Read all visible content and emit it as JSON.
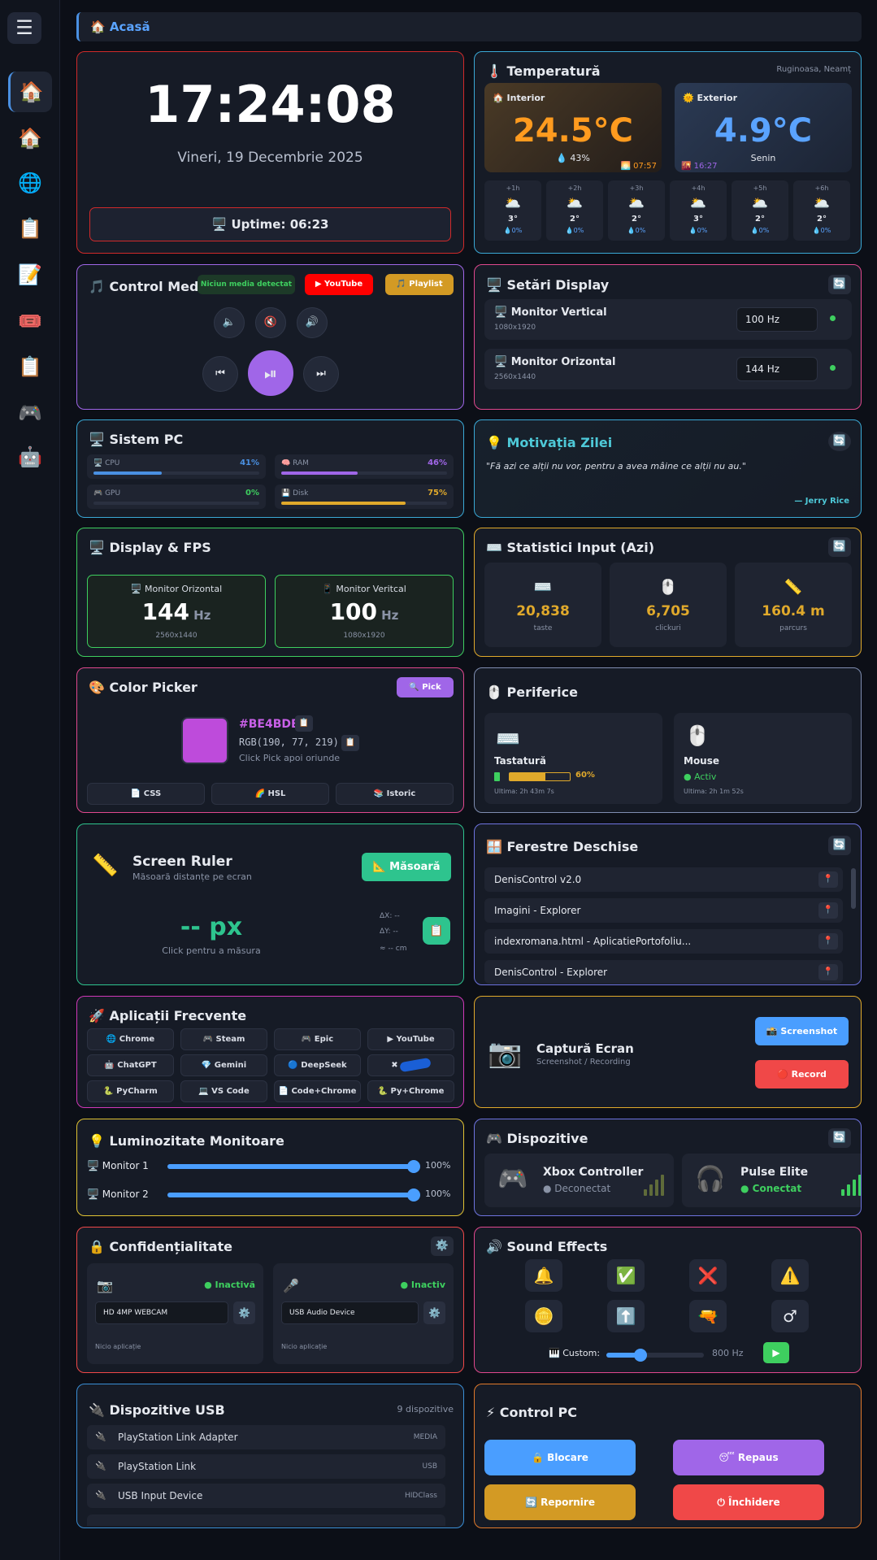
{
  "sidebar": {
    "menu_icon": "☰",
    "items": [
      {
        "icon": "🏠",
        "name": "home"
      },
      {
        "icon": "🏠",
        "name": "house"
      },
      {
        "icon": "🌐",
        "name": "web"
      },
      {
        "icon": "📋",
        "name": "clipboard"
      },
      {
        "icon": "📝",
        "name": "notes"
      },
      {
        "icon": "🎟️",
        "name": "tickets"
      },
      {
        "icon": "📋",
        "name": "list"
      },
      {
        "icon": "🎮",
        "name": "games"
      },
      {
        "icon": "🤖",
        "name": "robot"
      }
    ]
  },
  "header": {
    "title": "🏠 Acasă"
  },
  "clock": {
    "time": "17:24:08",
    "date": "Vineri, 19 Decembrie 2025",
    "uptime": "🖥️ Uptime: 06:23"
  },
  "temperature": {
    "title": "🌡️ Temperatură",
    "location": "Ruginoasa, Neamț",
    "interior": {
      "label": "🏠 Interior",
      "value": "24.5°C",
      "humidity": "💧 43%",
      "time": "🌅 07:57"
    },
    "exterior": {
      "label": "🌞 Exterior",
      "value": "4.9°C",
      "condition": "Senin",
      "time": "🌇 16:27"
    },
    "forecast": [
      {
        "h": "+1h",
        "icon": "🌥️",
        "t": "3°",
        "r": "💧0%"
      },
      {
        "h": "+2h",
        "icon": "🌥️",
        "t": "2°",
        "r": "💧0%"
      },
      {
        "h": "+3h",
        "icon": "🌥️",
        "t": "2°",
        "r": "💧0%"
      },
      {
        "h": "+4h",
        "icon": "🌥️",
        "t": "3°",
        "r": "💧0%"
      },
      {
        "h": "+5h",
        "icon": "🌥️",
        "t": "2°",
        "r": "💧0%"
      },
      {
        "h": "+6h",
        "icon": "🌥️",
        "t": "2°",
        "r": "💧0%"
      }
    ]
  },
  "media": {
    "title": "🎵 Control Media",
    "status": "Niciun media detectat",
    "youtube": "▶ YouTube",
    "playlist": "🎵 Playlist",
    "vol_down": "🔈",
    "mute": "🔇",
    "vol_up": "🔊",
    "prev": "⏮",
    "play": "⏯",
    "next": "⏭"
  },
  "display_settings": {
    "title": "🖥️ Setări Display",
    "refresh": "🔄",
    "monitors": [
      {
        "name": "🖥️ Monitor Vertical",
        "res": "1080x1920",
        "hz": "100 Hz"
      },
      {
        "name": "🖥️ Monitor Orizontal",
        "res": "2560x1440",
        "hz": "144 Hz"
      }
    ]
  },
  "system": {
    "title": "🖥️ Sistem PC",
    "stats": [
      {
        "label": "🖥️ CPU",
        "value": "41%",
        "pct": 41,
        "color": "#4a90e2"
      },
      {
        "label": "🧠 RAM",
        "value": "46%",
        "pct": 46,
        "color": "#a066e8"
      },
      {
        "label": "🎮 GPU",
        "value": "0%",
        "pct": 0,
        "color": "#3ecf5f"
      },
      {
        "label": "💾 Disk",
        "value": "75%",
        "pct": 75,
        "color": "#e0a92b"
      }
    ]
  },
  "motivation": {
    "title": "💡 Motivația Zilei",
    "refresh": "🔄",
    "quote": "\"Fă azi ce alții nu vor, pentru a avea mâine ce alții nu au.\"",
    "author": "— Jerry Rice"
  },
  "fps": {
    "title": "🖥️ Display & FPS",
    "monitors": [
      {
        "name": "🖥️ Monitor Orizontal",
        "value": "144",
        "unit": "Hz",
        "res": "2560x1440"
      },
      {
        "name": "📱 Monitor Veritcal",
        "value": "100",
        "unit": "Hz",
        "res": "1080x1920"
      }
    ]
  },
  "input_stats": {
    "title": "⌨️ Statistici Input (Azi)",
    "refresh": "🔄",
    "items": [
      {
        "icon": "⌨️",
        "value": "20,838",
        "label": "taste"
      },
      {
        "icon": "🖱️",
        "value": "6,705",
        "label": "clickuri"
      },
      {
        "icon": "📏",
        "value": "160.4 m",
        "label": "parcurs"
      }
    ]
  },
  "color_picker": {
    "title": "🎨 Color Picker",
    "pick": "🔍 Pick",
    "hex": "#BE4BDB",
    "rgb": "RGB(190, 77, 219)",
    "hint": "Click Pick apoi oriunde",
    "swatch": "#BE4BDB",
    "copy": "📋",
    "buttons": [
      "📄 CSS",
      "🌈 HSL",
      "📚 Istoric"
    ]
  },
  "peripherals": {
    "title": "🖱️ Periferice",
    "keyboard": {
      "icon": "⌨️",
      "name": "Tastatură",
      "battery": "60%",
      "battery_pct": 60,
      "last": "Ultima: 2h 43m 7s"
    },
    "mouse": {
      "icon": "🖱️",
      "name": "Mouse",
      "status": "● Activ",
      "last": "Ultima: 2h 1m 52s"
    }
  },
  "ruler": {
    "title": "Screen Ruler",
    "subtitle": "Măsoară distanțe pe ecran",
    "icon": "📏",
    "measure": "📐 Măsoară",
    "value": "-- px",
    "hint": "Click pentru a măsura",
    "dx": "ΔX: --",
    "dy": "ΔY: --",
    "cm": "≈ -- cm",
    "copy": "📋"
  },
  "windows": {
    "title": "🪟 Ferestre Deschise",
    "refresh": "🔄",
    "items": [
      "DenisControl v2.0",
      "Imagini - Explorer",
      "indexromana.html - AplicatiePortofoliu...",
      "DenisControl - Explorer"
    ],
    "pin": "📍"
  },
  "apps": {
    "title": "🚀 Aplicații Frecvente",
    "items": [
      "🌐 Chrome",
      "🎮 Steam",
      "🎮 Epic",
      "▶ YouTube",
      "🤖 ChatGPT",
      "💎 Gemini",
      "🔵 DeepSeek",
      "✖",
      "🐍 PyCharm",
      "💻 VS Code",
      "📄 Code+Chrome",
      "🐍 Py+Chrome"
    ]
  },
  "capture": {
    "title": "Captură Ecran",
    "subtitle": "Screenshot / Recording",
    "icon": "📷",
    "screenshot": "📸 Screenshot",
    "record": "🔴 Record"
  },
  "brightness": {
    "title": "💡 Luminozitate Monitoare",
    "monitors": [
      {
        "label": "🖥️ Monitor 1",
        "value": "100%",
        "pct": 100
      },
      {
        "label": "🖥️ Monitor 2",
        "value": "100%",
        "pct": 100
      }
    ]
  },
  "devices": {
    "title": "🎮 Dispozitive",
    "refresh": "🔄",
    "items": [
      {
        "icon": "🎮",
        "name": "Xbox Controller",
        "status": "● Deconectat",
        "color": "#8a93a6"
      },
      {
        "icon": "🎧",
        "name": "Pulse Elite",
        "status": "● Conectat",
        "color": "#3ecf5f"
      }
    ]
  },
  "privacy": {
    "title": "🔒 Confidențialitate",
    "settings": "⚙️",
    "camera": {
      "icon": "📷",
      "status": "● Inactivă",
      "device": "HD 4MP WEBCAM",
      "apps": "Nicio aplicație"
    },
    "mic": {
      "icon": "🎤",
      "status": "● Inactiv",
      "device": "USB Audio Device",
      "apps": "Nicio aplicație"
    }
  },
  "sound": {
    "title": "🔊 Sound Effects",
    "buttons": [
      "🔔",
      "✅",
      "❌",
      "⚠️",
      "🪙",
      "⬆️",
      "🔫",
      "♂"
    ],
    "custom_label": "🎹 Custom:",
    "freq": "800 Hz",
    "freq_pct": 35,
    "play": "▶"
  },
  "usb": {
    "title": "🔌 Dispozitive USB",
    "count": "9 dispozitive",
    "items": [
      {
        "icon": "🔌",
        "name": "PlayStation Link Adapter",
        "type": "MEDIA"
      },
      {
        "icon": "🔌",
        "name": "PlayStation Link",
        "type": "USB"
      },
      {
        "icon": "🔌",
        "name": "USB Input Device",
        "type": "HIDClass"
      }
    ]
  },
  "control": {
    "title": "⚡ Control PC",
    "buttons": [
      {
        "label": "🔒 Blocare",
        "color": "#4a9eff"
      },
      {
        "label": "😴 Repaus",
        "color": "#a066e8"
      },
      {
        "label": "🔄 Repornire",
        "color": "#d39a24"
      },
      {
        "label": "⏻ Închidere",
        "color": "#f04848"
      }
    ]
  }
}
